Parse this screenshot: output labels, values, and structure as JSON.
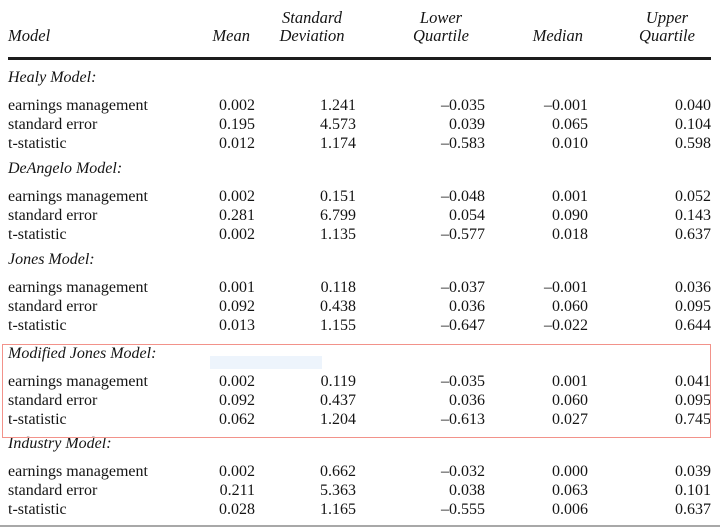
{
  "table": {
    "columns": [
      "Model",
      "Mean",
      "Standard Deviation",
      "Lower Quartile",
      "Median",
      "Upper Quartile"
    ],
    "row_labels": [
      "earnings management",
      "standard error",
      "t-statistic"
    ],
    "sections": [
      {
        "model": "Healy Model:",
        "highlighted": false,
        "rows": [
          [
            "0.002",
            "1.241",
            "–0.035",
            "–0.001",
            "0.040"
          ],
          [
            "0.195",
            "4.573",
            "0.039",
            "0.065",
            "0.104"
          ],
          [
            "0.012",
            "1.174",
            "–0.583",
            "0.010",
            "0.598"
          ]
        ]
      },
      {
        "model": "DeAngelo Model:",
        "highlighted": false,
        "rows": [
          [
            "0.002",
            "0.151",
            "–0.048",
            "0.001",
            "0.052"
          ],
          [
            "0.281",
            "6.799",
            "0.054",
            "0.090",
            "0.143"
          ],
          [
            "0.002",
            "1.135",
            "–0.577",
            "0.018",
            "0.637"
          ]
        ]
      },
      {
        "model": "Jones Model:",
        "highlighted": false,
        "rows": [
          [
            "0.001",
            "0.118",
            "–0.037",
            "–0.001",
            "0.036"
          ],
          [
            "0.092",
            "0.438",
            "0.036",
            "0.060",
            "0.095"
          ],
          [
            "0.013",
            "1.155",
            "–0.647",
            "–0.022",
            "0.644"
          ]
        ]
      },
      {
        "model": "Modified Jones Model:",
        "highlighted": true,
        "rows": [
          [
            "0.002",
            "0.119",
            "–0.035",
            "0.001",
            "0.041"
          ],
          [
            "0.092",
            "0.437",
            "0.036",
            "0.060",
            "0.095"
          ],
          [
            "0.062",
            "1.204",
            "–0.613",
            "0.027",
            "0.745"
          ]
        ]
      },
      {
        "model": "Industry Model:",
        "highlighted": false,
        "rows": [
          [
            "0.002",
            "0.662",
            "–0.032",
            "0.000",
            "0.039"
          ],
          [
            "0.211",
            "5.363",
            "0.038",
            "0.063",
            "0.101"
          ],
          [
            "0.028",
            "1.165",
            "–0.555",
            "0.006",
            "0.637"
          ]
        ]
      }
    ]
  },
  "annotations": {
    "box_border_color": "#f2928a",
    "selection_fill_color": "#edf4fc"
  }
}
